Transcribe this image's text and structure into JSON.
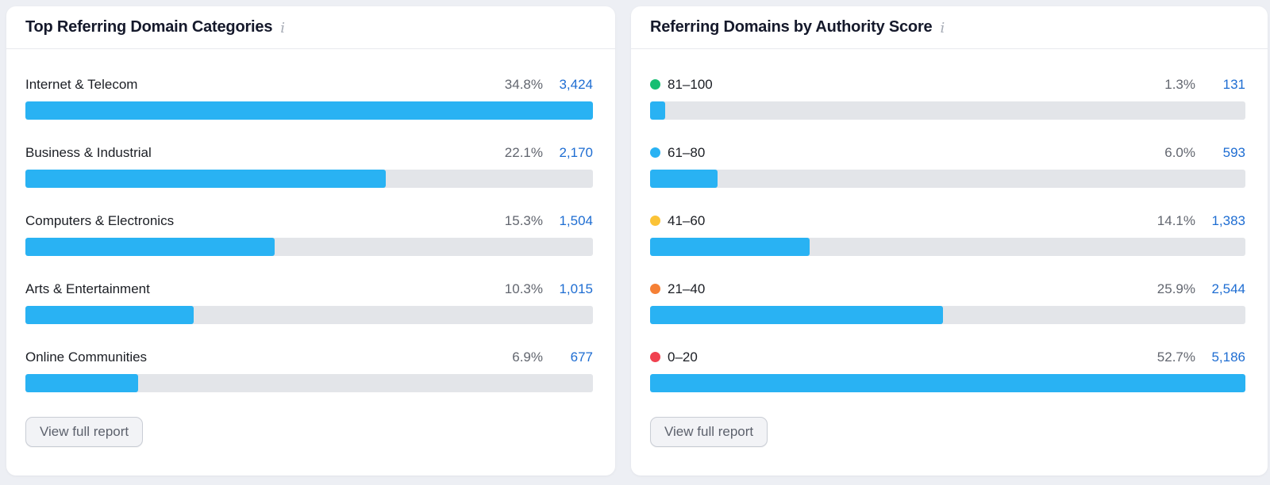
{
  "page": {
    "background": "#edeff4"
  },
  "colors": {
    "bar_fill": "#29b2f3",
    "bar_track": "#e3e5e9",
    "count_link": "#1e6dd2",
    "percent_text": "#62666f",
    "card_background": "#ffffff"
  },
  "cards": [
    {
      "title": "Top Referring Domain Categories",
      "info_icon_glyph": "i",
      "chart_type": "bar",
      "rows": [
        {
          "label": "Internet & Telecom",
          "percent": "34.8%",
          "count": "3,424"
        },
        {
          "label": "Business & Industrial",
          "percent": "22.1%",
          "count": "2,170"
        },
        {
          "label": "Computers & Electronics",
          "percent": "15.3%",
          "count": "1,504"
        },
        {
          "label": "Arts & Entertainment",
          "percent": "10.3%",
          "count": "1,015"
        },
        {
          "label": "Online Communities",
          "percent": "6.9%",
          "count": "677"
        }
      ],
      "button_label": "View full report"
    },
    {
      "title": "Referring Domains by Authority Score",
      "info_icon_glyph": "i",
      "chart_type": "bar",
      "rows": [
        {
          "label": "81–100",
          "dot_color": "#17be72",
          "percent": "1.3%",
          "count": "131"
        },
        {
          "label": "61–80",
          "dot_color": "#29b2f3",
          "percent": "6.0%",
          "count": "593"
        },
        {
          "label": "41–60",
          "dot_color": "#fbc337",
          "percent": "14.1%",
          "count": "1,383"
        },
        {
          "label": "21–40",
          "dot_color": "#f58035",
          "percent": "25.9%",
          "count": "2,544"
        },
        {
          "label": "0–20",
          "dot_color": "#f0414f",
          "percent": "52.7%",
          "count": "5,186"
        }
      ],
      "button_label": "View full report"
    }
  ],
  "chart_data": [
    {
      "type": "bar",
      "title": "Top Referring Domain Categories",
      "categories": [
        "Internet & Telecom",
        "Business & Industrial",
        "Computers & Electronics",
        "Arts & Entertainment",
        "Online Communities"
      ],
      "percent_values": [
        34.8,
        22.1,
        15.3,
        10.3,
        6.9
      ],
      "counts": [
        3424,
        2170,
        1504,
        1015,
        677
      ],
      "bars_scaled_to_max": true
    },
    {
      "type": "bar",
      "title": "Referring Domains by Authority Score",
      "categories": [
        "81–100",
        "61–80",
        "41–60",
        "21–40",
        "0–20"
      ],
      "percent_values": [
        1.3,
        6.0,
        14.1,
        25.9,
        52.7
      ],
      "counts": [
        131,
        593,
        1383,
        2544,
        5186
      ],
      "bars_scaled_to_max": true
    }
  ]
}
